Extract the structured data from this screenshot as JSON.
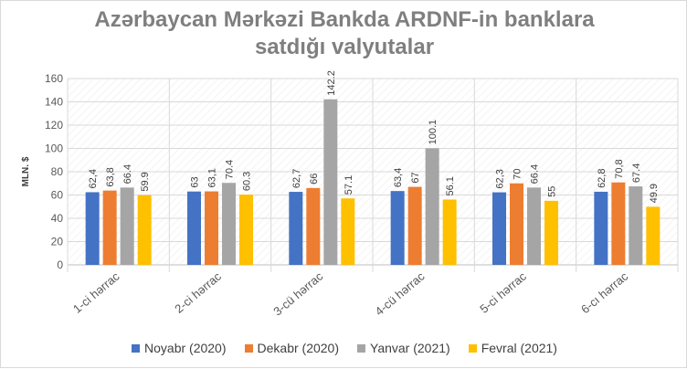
{
  "chart_data": {
    "type": "bar",
    "title_line1": "Azərbaycan Mərkəzi Bankda ARDNF-in banklara",
    "title_line2": "satdığı valyutalar",
    "ylabel": "MLN. $",
    "ylim": [
      0,
      160
    ],
    "yticks": [
      "0",
      "20",
      "40",
      "60",
      "80",
      "100",
      "120",
      "140",
      "160"
    ],
    "grid": true,
    "legend_position": "bottom",
    "categories": [
      "1-ci hərrac",
      "2-ci hərrac",
      "3-cü hərrac",
      "4-cü hərrac",
      "5-ci hərrac",
      "6-cı hərrac"
    ],
    "series": [
      {
        "name": "Noyabr (2020)",
        "color": "#4472c4",
        "values": [
          62.4,
          63,
          62.7,
          63.4,
          62.3,
          62.8
        ],
        "labels": [
          "62,4",
          "63",
          "62,7",
          "63,4",
          "62,3",
          "62,8"
        ]
      },
      {
        "name": "Dekabr (2020)",
        "color": "#ed7d31",
        "values": [
          63.8,
          63.1,
          66,
          67,
          70,
          70.8
        ],
        "labels": [
          "63,8",
          "63,1",
          "66",
          "67",
          "70",
          "70,8"
        ]
      },
      {
        "name": "Yanvar (2021)",
        "color": "#a5a5a5",
        "values": [
          66.4,
          70.4,
          142.2,
          100.1,
          66.4,
          67.4
        ],
        "labels": [
          "66.4",
          "70.4",
          "142.2",
          "100.1",
          "66.4",
          "67.4"
        ]
      },
      {
        "name": "Fevral (2021)",
        "color": "#ffc000",
        "values": [
          59.9,
          60.3,
          57.1,
          56.1,
          55,
          49.9
        ],
        "labels": [
          "59.9",
          "60.3",
          "57.1",
          "56.1",
          "55",
          "49.9"
        ]
      }
    ]
  }
}
